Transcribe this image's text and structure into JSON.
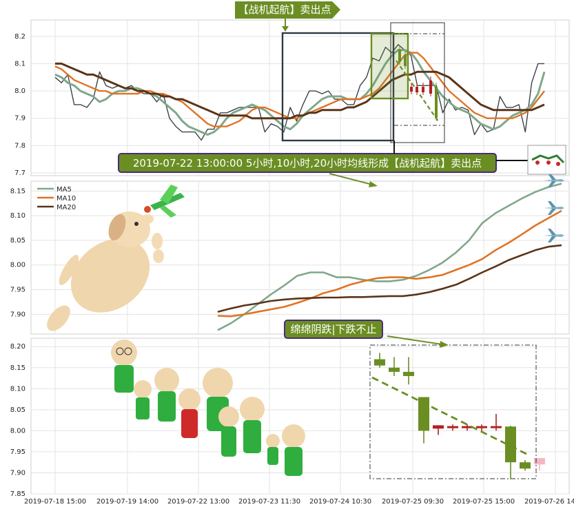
{
  "chart_data": [
    {
      "type": "line",
      "panel": "price_and_moving_averages",
      "title": "",
      "ylim": [
        7.69,
        8.26
      ],
      "yticks": [
        "7.7",
        "7.8",
        "7.9",
        "8.0",
        "8.1",
        "8.2"
      ],
      "grid": true,
      "series": [
        {
          "color": "#3c4248",
          "values": [
            8.05,
            8.03,
            8.06,
            7.95,
            7.95,
            7.94,
            7.97,
            8.07,
            8.02,
            8.01,
            8.02,
            8.01,
            8.02,
            8.0,
            7.99,
            7.99,
            7.96,
            7.99,
            7.9,
            7.87,
            7.85,
            7.85,
            7.85,
            7.82,
            7.86,
            7.86,
            7.92,
            7.92,
            7.93,
            7.94,
            7.94,
            7.94,
            7.94,
            7.85,
            7.88,
            7.87,
            7.85,
            7.94,
            7.89,
            7.95,
            8.0,
            8.0,
            7.99,
            8.0,
            7.97,
            7.97,
            7.95,
            7.95,
            8.02,
            8.05,
            8.12,
            8.11,
            8.16,
            8.14,
            8.17,
            8.15,
            8.13,
            8.02,
            8.02,
            8.02,
            8.02,
            7.92,
            7.97,
            7.93,
            7.94,
            7.93,
            7.84,
            7.88,
            7.85,
            7.86,
            7.98,
            7.94,
            7.94,
            7.95,
            7.85,
            8.03,
            8.1,
            8.1
          ]
        },
        {
          "name": "MA5",
          "color": "#7fa88a",
          "values": [
            8.06,
            8.05,
            8.03,
            8.02,
            8.0,
            7.99,
            7.98,
            7.96,
            7.97,
            7.99,
            8.0,
            8.0,
            8.01,
            8.01,
            8.0,
            7.99,
            7.98,
            7.96,
            7.94,
            7.92,
            7.89,
            7.87,
            7.86,
            7.85,
            7.84,
            7.85,
            7.87,
            7.9,
            7.92,
            7.93,
            7.94,
            7.95,
            7.94,
            7.93,
            7.91,
            7.89,
            7.87,
            7.86,
            7.88,
            7.91,
            7.93,
            7.95,
            7.97,
            7.98,
            7.98,
            7.98,
            7.97,
            7.97,
            7.97,
            7.99,
            8.02,
            8.06,
            8.1,
            8.13,
            8.15,
            8.15,
            8.14,
            8.11,
            8.07,
            8.04,
            8.01,
            7.98,
            7.96,
            7.94,
            7.93,
            7.92,
            7.9,
            7.88,
            7.87,
            7.86,
            7.87,
            7.89,
            7.91,
            7.92,
            7.93,
            7.95,
            7.99,
            8.07
          ]
        },
        {
          "name": "MA10",
          "color": "#e07324",
          "values": [
            8.09,
            8.08,
            8.06,
            8.04,
            8.03,
            8.02,
            8.01,
            8.0,
            8.0,
            7.99,
            7.99,
            7.99,
            7.99,
            7.99,
            8.0,
            8.0,
            7.99,
            7.99,
            7.98,
            7.97,
            7.96,
            7.94,
            7.92,
            7.9,
            7.88,
            7.87,
            7.87,
            7.87,
            7.88,
            7.89,
            7.91,
            7.93,
            7.94,
            7.94,
            7.93,
            7.92,
            7.91,
            7.9,
            7.9,
            7.91,
            7.92,
            7.93,
            7.94,
            7.95,
            7.96,
            7.97,
            7.97,
            7.97,
            7.97,
            7.98,
            7.99,
            8.01,
            8.04,
            8.07,
            8.1,
            8.13,
            8.14,
            8.14,
            8.12,
            8.09,
            8.06,
            8.03,
            8.0,
            7.98,
            7.96,
            7.94,
            7.92,
            7.91,
            7.9,
            7.9,
            7.9,
            7.9,
            7.9,
            7.91,
            7.92,
            7.94,
            7.97,
            8.0
          ]
        },
        {
          "name": "MA20",
          "color": "#5a3418",
          "values": [
            8.1,
            8.1,
            8.09,
            8.08,
            8.07,
            8.06,
            8.06,
            8.05,
            8.04,
            8.03,
            8.02,
            8.01,
            8.01,
            8.0,
            8.0,
            7.99,
            7.99,
            7.98,
            7.98,
            7.97,
            7.97,
            7.96,
            7.95,
            7.94,
            7.93,
            7.92,
            7.91,
            7.91,
            7.91,
            7.91,
            7.91,
            7.9,
            7.9,
            7.9,
            7.9,
            7.9,
            7.9,
            7.9,
            7.91,
            7.91,
            7.92,
            7.92,
            7.93,
            7.93,
            7.93,
            7.93,
            7.94,
            7.94,
            7.95,
            7.96,
            7.98,
            8.0,
            8.02,
            8.04,
            8.05,
            8.06,
            8.06,
            8.07,
            8.07,
            8.07,
            8.07,
            8.06,
            8.05,
            8.03,
            8.01,
            7.99,
            7.97,
            7.95,
            7.94,
            7.93,
            7.93,
            7.93,
            7.93,
            7.93,
            7.93,
            7.93,
            7.94,
            7.95
          ]
        }
      ]
    },
    {
      "type": "line",
      "panel": "moving_averages_zoom",
      "ylim": [
        7.86,
        8.17
      ],
      "yticks": [
        "7.90",
        "7.95",
        "8.00",
        "8.05",
        "8.10",
        "8.15"
      ],
      "legend": "top-left",
      "grid": true,
      "series": [
        {
          "name": "MA5",
          "color": "#7fa88a",
          "values": [
            7.868,
            7.882,
            7.9,
            7.92,
            7.94,
            7.958,
            7.978,
            7.985,
            7.985,
            7.975,
            7.975,
            7.97,
            7.967,
            7.967,
            7.97,
            7.978,
            7.99,
            8.005,
            8.025,
            8.05,
            8.085,
            8.105,
            8.12,
            8.135,
            8.148,
            8.158,
            8.165
          ]
        },
        {
          "name": "MA10",
          "color": "#e07324",
          "values": [
            7.897,
            7.896,
            7.9,
            7.905,
            7.91,
            7.915,
            7.923,
            7.932,
            7.943,
            7.95,
            7.96,
            7.967,
            7.973,
            7.975,
            7.975,
            7.972,
            7.975,
            7.98,
            7.99,
            8.0,
            8.012,
            8.03,
            8.045,
            8.062,
            8.08,
            8.095,
            8.11
          ]
        },
        {
          "name": "MA20",
          "color": "#5a3418",
          "values": [
            7.905,
            7.912,
            7.918,
            7.922,
            7.927,
            7.93,
            7.932,
            7.933,
            7.934,
            7.934,
            7.935,
            7.935,
            7.936,
            7.937,
            7.937,
            7.94,
            7.945,
            7.952,
            7.96,
            7.972,
            7.985,
            7.997,
            8.01,
            8.02,
            8.03,
            8.037,
            8.04
          ]
        }
      ]
    },
    {
      "type": "candlestick",
      "panel": "candles",
      "ylim": [
        7.85,
        8.22
      ],
      "yticks": [
        "7.85",
        "7.90",
        "7.95",
        "8.00",
        "8.05",
        "8.10",
        "8.15",
        "8.20"
      ],
      "xticks": [
        "2019-07-18 15:00",
        "2019-07-19 14:00",
        "2019-07-22 13:00",
        "2019-07-23 11:30",
        "2019-07-24 10:30",
        "2019-07-25 09:30",
        "2019-07-25 15:00",
        "2019-07-26 14:00"
      ],
      "grid": true,
      "candles": [
        {
          "open": 8.17,
          "close": 8.155,
          "high": 8.185,
          "low": 8.15,
          "color": "#6b8e23"
        },
        {
          "open": 8.15,
          "close": 8.14,
          "high": 8.175,
          "low": 8.13,
          "color": "#6b8e23"
        },
        {
          "open": 8.14,
          "close": 8.13,
          "high": 8.175,
          "low": 8.11,
          "color": "#6b8e23"
        },
        {
          "open": 8.08,
          "close": 8.0,
          "high": 8.08,
          "low": 7.97,
          "color": "#6b8e23"
        },
        {
          "open": 8.005,
          "close": 8.013,
          "high": 8.013,
          "low": 7.99,
          "color": "#b22222"
        },
        {
          "open": 8.009,
          "close": 8.011,
          "high": 8.015,
          "low": 8.0,
          "color": "#b22222"
        },
        {
          "open": 8.009,
          "close": 8.011,
          "high": 8.015,
          "low": 8.0,
          "color": "#b22222"
        },
        {
          "open": 8.009,
          "close": 8.011,
          "high": 8.015,
          "low": 8.0,
          "color": "#b22222"
        },
        {
          "open": 8.009,
          "close": 8.011,
          "high": 8.04,
          "low": 8.0,
          "color": "#b22222"
        },
        {
          "open": 8.01,
          "close": 7.925,
          "high": 8.012,
          "low": 7.885,
          "color": "#6b8e23"
        },
        {
          "open": 7.925,
          "close": 7.91,
          "high": 7.93,
          "low": 7.905,
          "color": "#6b8e23"
        },
        {
          "open": 7.92,
          "close": 7.935,
          "high": 7.935,
          "low": 7.905,
          "color": "#f4b6c2"
        }
      ]
    }
  ],
  "annotations": {
    "signal_tag": "【战机起航】卖出点",
    "signal_desc": "2019-07-22 13:00:00 5小时,10小时,20小时均线形成【战机起航】卖出点",
    "candle_desc": "绵绵阴跌|下跌不止"
  },
  "colors": {
    "tag_fill": "#6b8e23",
    "label_fill": "#6b8e23",
    "label_border": "#4b2a7a",
    "frame": "#2f3a44",
    "trend": "#6b8e23"
  },
  "icons": [
    "airplane-icon",
    "dog-icon",
    "dog-group-icon",
    "santa-sleigh-icon"
  ]
}
